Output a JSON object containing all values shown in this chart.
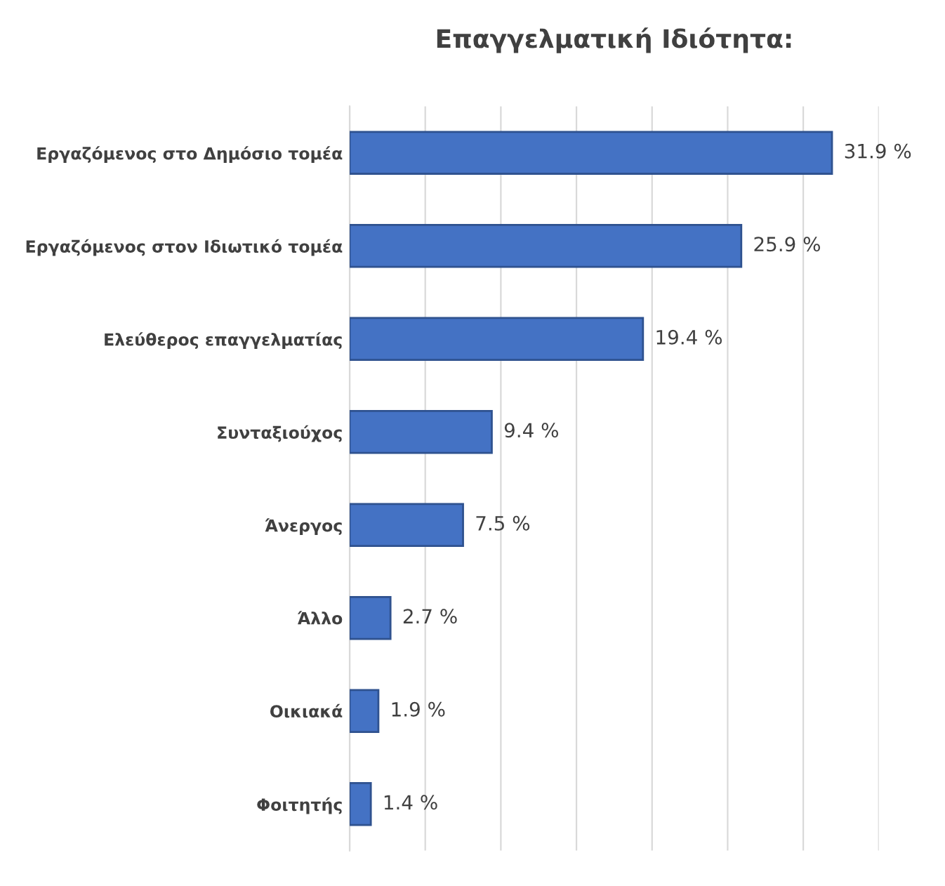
{
  "chart_data": {
    "type": "bar",
    "orientation": "horizontal",
    "title": "Επαγγελματική Ιδιότητα:",
    "categories": [
      "Εργαζόμενος στο Δημόσιο τομέα",
      "Εργαζόμενος στον Ιδιωτικό τομέα",
      "Ελεύθερος επαγγελματίας",
      "Συνταξιούχος",
      "Άνεργος",
      "Άλλο",
      "Οικιακά",
      "Φοιτητής"
    ],
    "values": [
      31.9,
      25.9,
      19.4,
      9.4,
      7.5,
      2.7,
      1.9,
      1.4
    ],
    "value_labels": [
      "31.9 %",
      "25.9 %",
      "19.4 %",
      "9.4 %",
      "7.5 %",
      "2.7 %",
      "1.9 %",
      "1.4 %"
    ],
    "color": "#4472c4",
    "xlim": [
      0,
      35
    ],
    "xticks": [
      {
        "value": 0,
        "label": null
      },
      {
        "value": 5,
        "label": null
      },
      {
        "value": 10,
        "label": null
      },
      {
        "value": 15,
        "label": null
      },
      {
        "value": 20,
        "label": null
      },
      {
        "value": 25,
        "label": null
      },
      {
        "value": 30,
        "label": null
      },
      {
        "value": 35,
        "label": null
      }
    ],
    "grid": "x",
    "legend": false,
    "tick_labels": "y"
  }
}
